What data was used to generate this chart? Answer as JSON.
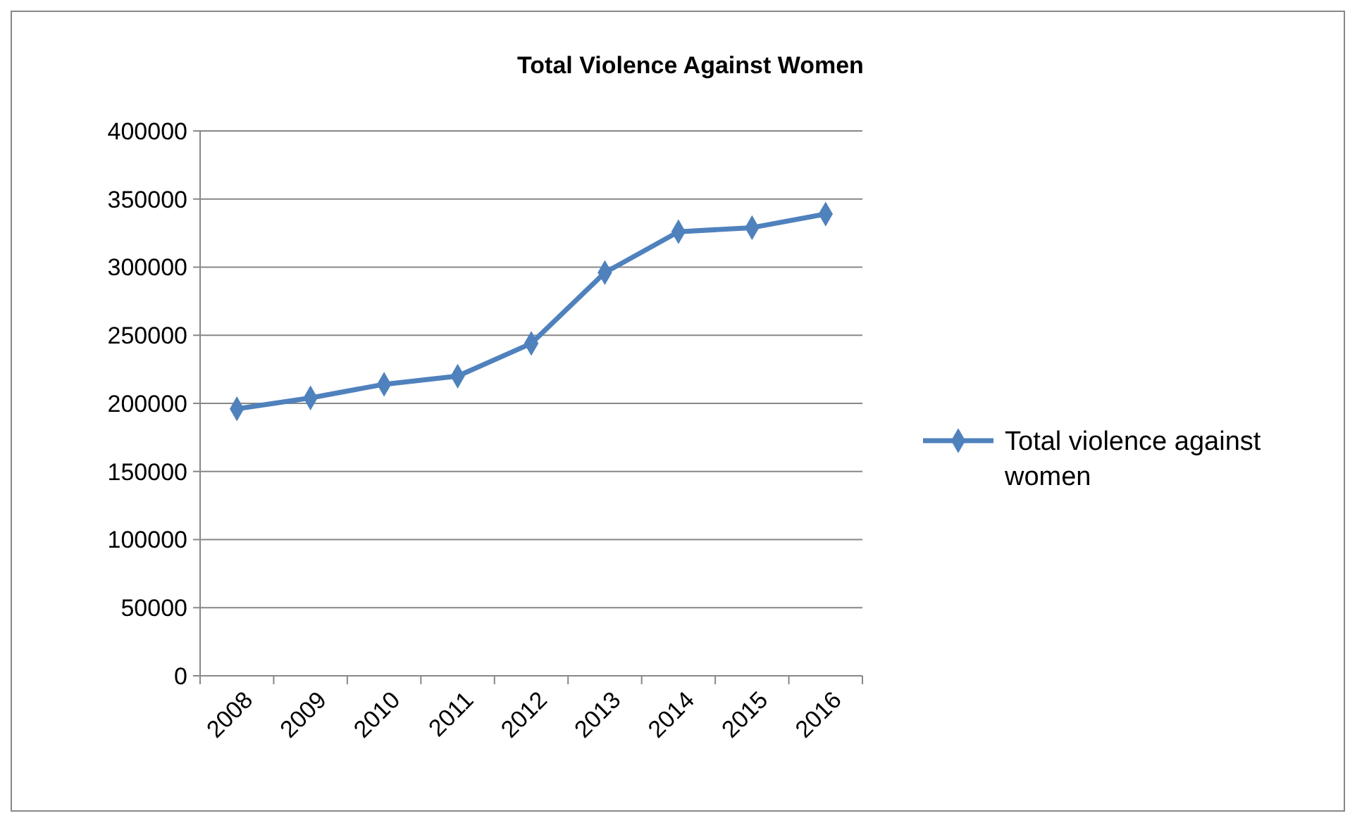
{
  "chart_data": {
    "type": "line",
    "title": "Total Violence Against Women",
    "categories": [
      "2008",
      "2009",
      "2010",
      "2011",
      "2012",
      "2013",
      "2014",
      "2015",
      "2016"
    ],
    "series": [
      {
        "name": "Total violence against women",
        "color": "#4f81bd",
        "values": [
          196000,
          204000,
          214000,
          220000,
          244000,
          296000,
          326000,
          329000,
          339000
        ]
      }
    ],
    "ylim": [
      0,
      400000
    ],
    "yticks": [
      0,
      50000,
      100000,
      150000,
      200000,
      250000,
      300000,
      350000,
      400000
    ],
    "grid": "y",
    "legend": "right",
    "marker": "diamond",
    "line_style": "solid"
  }
}
